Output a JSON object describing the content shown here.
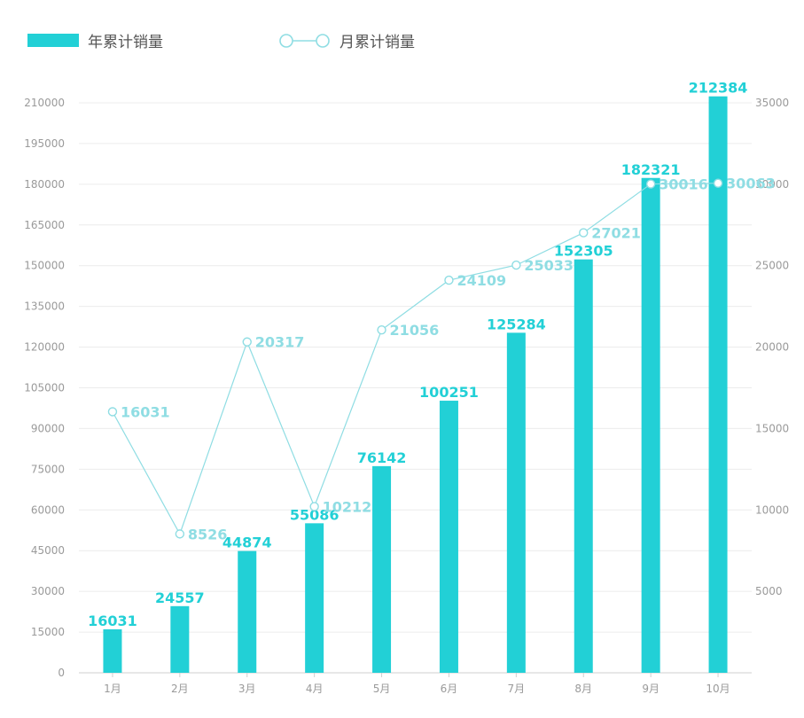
{
  "chart_data": {
    "type": "bar",
    "categories": [
      "1月",
      "2月",
      "3月",
      "4月",
      "5月",
      "6月",
      "7月",
      "8月",
      "9月",
      "10月"
    ],
    "series": [
      {
        "name": "年累计销量",
        "type": "bar",
        "axis": "left",
        "color": "#22d0d6",
        "values": [
          16031,
          24557,
          44874,
          55086,
          76142,
          100251,
          125284,
          152305,
          182321,
          212384
        ]
      },
      {
        "name": "月累计销量",
        "type": "line",
        "axis": "right",
        "color": "#8fdde3",
        "values": [
          16031,
          8526,
          20317,
          10212,
          21056,
          24109,
          25033,
          27021,
          30016,
          30063
        ]
      }
    ],
    "left_axis": {
      "ylim": [
        0,
        210000
      ],
      "ticks": [
        "0",
        "15000",
        "30000",
        "45000",
        "60000",
        "75000",
        "90000",
        "105000",
        "120000",
        "135000",
        "150000",
        "165000",
        "180000",
        "195000",
        "210000"
      ]
    },
    "right_axis": {
      "ylim": [
        0,
        35000
      ],
      "ticks": [
        "5000",
        "10000",
        "15000",
        "20000",
        "25000",
        "30000",
        "35000"
      ]
    },
    "legend_position": "top-left",
    "grid": true
  }
}
